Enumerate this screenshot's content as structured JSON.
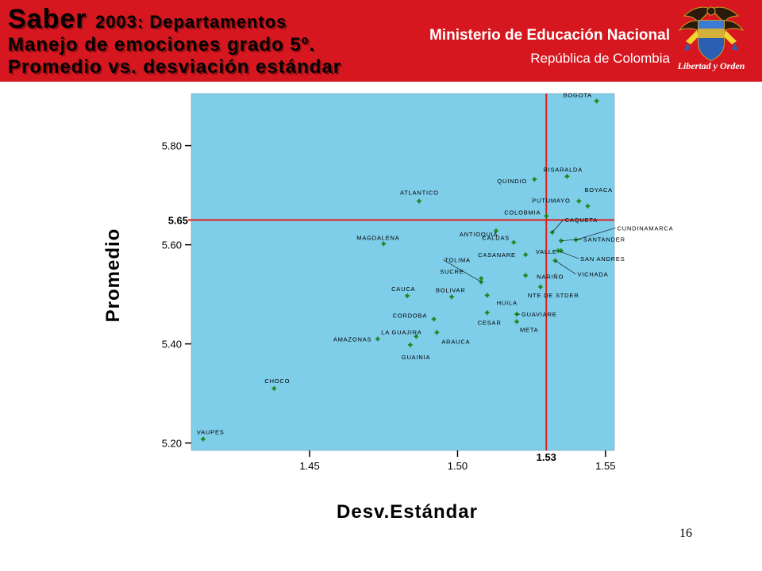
{
  "header": {
    "title_word": "Saber",
    "title_rest": "2003: Departamentos",
    "title_line2": "Manejo de emociones grado 5º.",
    "title_line3": "Promedio vs. desviación estándar",
    "ministry": "Ministerio de Educación Nacional",
    "republic": "República de Colombia",
    "seal_motto": "Libertad y Orden"
  },
  "page_number": "16",
  "colors": {
    "header_red": "#d7171f",
    "plot_bg": "#7ecde9",
    "point_green": "#1e8a1e",
    "reference_line_red": "#e0201a"
  },
  "chart_data": {
    "type": "scatter",
    "xlabel": "Desv.Estándar",
    "ylabel": "Promedio",
    "xlim": [
      1.41,
      1.553
    ],
    "ylim": [
      5.185,
      5.905
    ],
    "x_ticks": [
      "1.45",
      "1.50",
      "1.55"
    ],
    "y_ticks": [
      "5.20",
      "5.40",
      "5.60",
      "5.80"
    ],
    "reference_lines": {
      "x": 1.53,
      "y": 5.65,
      "x_label": "1.53",
      "y_label": "5.65"
    },
    "points": [
      {
        "label": "BOGOTA",
        "x": 1.547,
        "y": 5.89
      },
      {
        "label": "RISARALDA",
        "x": 1.537,
        "y": 5.738
      },
      {
        "label": "QUINDIO",
        "x": 1.526,
        "y": 5.732
      },
      {
        "label": "BOYACA",
        "x": 1.544,
        "y": 5.678
      },
      {
        "label": "PUTUMAYO",
        "x": 1.541,
        "y": 5.688
      },
      {
        "label": "ATLANTICO",
        "x": 1.487,
        "y": 5.688
      },
      {
        "label": "COLOBMIA",
        "x": 1.53,
        "y": 5.658
      },
      {
        "label": "CAQUETA",
        "x": 1.532,
        "y": 5.625
      },
      {
        "label": "CALDAS",
        "x": 1.519,
        "y": 5.605
      },
      {
        "label": "CUNDINAMARCA",
        "x": 1.54,
        "y": 5.61
      },
      {
        "label": "SANTANDER",
        "x": 1.535,
        "y": 5.608
      },
      {
        "label": "MAGDALENA",
        "x": 1.475,
        "y": 5.602
      },
      {
        "label": "ANTIOQUIA",
        "x": 1.513,
        "y": 5.628
      },
      {
        "label": "VALLE",
        "x": 1.535,
        "y": 5.588
      },
      {
        "label": "SAN ANDRES",
        "x": 1.534,
        "y": 5.588
      },
      {
        "label": "CASANARE",
        "x": 1.523,
        "y": 5.58
      },
      {
        "label": "VICHADA",
        "x": 1.533,
        "y": 5.568
      },
      {
        "label": "TOLIMA",
        "x": 1.508,
        "y": 5.525
      },
      {
        "label": "SUCRE",
        "x": 1.508,
        "y": 5.532
      },
      {
        "label": "NARIÑO",
        "x": 1.523,
        "y": 5.538
      },
      {
        "label": "CAUCA",
        "x": 1.483,
        "y": 5.497
      },
      {
        "label": "BOLIVAR",
        "x": 1.498,
        "y": 5.495
      },
      {
        "label": "HUILA",
        "x": 1.51,
        "y": 5.498
      },
      {
        "label": "NTE DE STDER",
        "x": 1.528,
        "y": 5.515
      },
      {
        "label": "CORDOBA",
        "x": 1.492,
        "y": 5.45
      },
      {
        "label": "CESAR",
        "x": 1.51,
        "y": 5.463
      },
      {
        "label": "GUAVIARE",
        "x": 1.52,
        "y": 5.46
      },
      {
        "label": "META",
        "x": 1.52,
        "y": 5.445
      },
      {
        "label": "LA GUAJIRA",
        "x": 1.486,
        "y": 5.415
      },
      {
        "label": "ARAUCA",
        "x": 1.493,
        "y": 5.423
      },
      {
        "label": "AMAZONAS",
        "x": 1.473,
        "y": 5.41
      },
      {
        "label": "GUAINIA",
        "x": 1.484,
        "y": 5.398
      },
      {
        "label": "CHOCO",
        "x": 1.438,
        "y": 5.31
      },
      {
        "label": "VAUPES",
        "x": 1.414,
        "y": 5.208
      }
    ]
  }
}
